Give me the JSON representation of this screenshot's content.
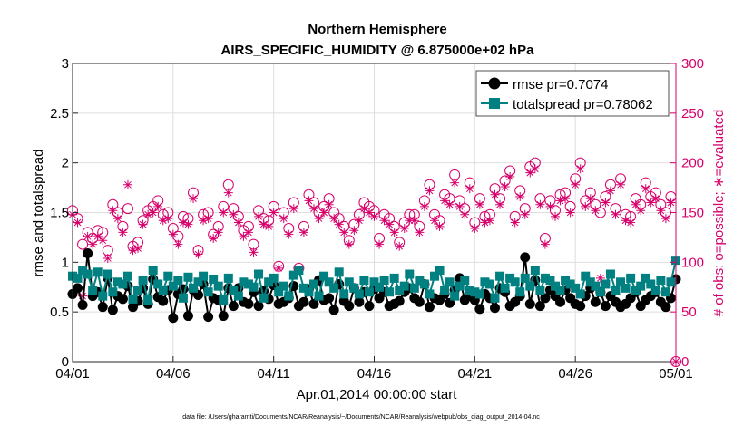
{
  "chart_data": {
    "type": "line",
    "title": "Northern Hemisphere",
    "subtitle": "AIRS_SPECIFIC_HUMIDITY @ 6.875000e+02 hPa",
    "xlabel": "Apr.01,2014 00:00:00 start",
    "ylabel": "rmse and totalspread",
    "y2label": "# of obs: o=possible; ∗=evaluated",
    "xlim": [
      0,
      30
    ],
    "ylim": [
      0,
      3
    ],
    "y2lim": [
      0,
      300
    ],
    "x_ticks": [
      0,
      5,
      10,
      15,
      20,
      25,
      30
    ],
    "x_tick_labels": [
      "04/01",
      "04/06",
      "04/11",
      "04/16",
      "04/21",
      "04/26",
      "05/01"
    ],
    "y_ticks": [
      0,
      0.5,
      1,
      1.5,
      2,
      2.5,
      3
    ],
    "y_tick_labels": [
      "0",
      "0.5",
      "1",
      "1.5",
      "2",
      "2.5",
      "3"
    ],
    "y2_ticks": [
      0,
      50,
      100,
      150,
      200,
      250,
      300
    ],
    "y2_tick_labels": [
      "0",
      "50",
      "100",
      "150",
      "200",
      "250",
      "300"
    ],
    "grid": true,
    "legend_position": "top-right",
    "colors": {
      "rmse": "#000000",
      "totalspread": "#008080",
      "obs": "#d6006b"
    },
    "series": [
      {
        "name": "rmse pr=0.7074",
        "axis": "left",
        "marker": "circle",
        "values": [
          0.68,
          0.74,
          0.57,
          1.09,
          0.66,
          0.7,
          0.55,
          0.84,
          0.52,
          0.66,
          0.63,
          0.76,
          0.55,
          0.61,
          0.74,
          0.58,
          0.83,
          0.65,
          0.61,
          0.72,
          0.44,
          0.68,
          0.73,
          0.46,
          0.72,
          0.67,
          0.78,
          0.45,
          0.64,
          0.62,
          0.46,
          0.74,
          0.56,
          0.74,
          0.6,
          0.58,
          0.7,
          0.56,
          0.71,
          0.63,
          0.77,
          0.58,
          0.6,
          0.64,
          0.76,
          0.56,
          0.6,
          0.73,
          0.58,
          0.82,
          0.62,
          0.64,
          0.52,
          0.78,
          0.61,
          0.56,
          0.74,
          0.6,
          0.7,
          0.56,
          0.73,
          0.64,
          0.7,
          0.56,
          0.58,
          0.61,
          0.7,
          0.74,
          0.64,
          0.6,
          0.78,
          0.55,
          0.64,
          0.62,
          0.68,
          0.59,
          0.72,
          0.84,
          0.62,
          0.66,
          0.62,
          0.53,
          0.68,
          0.64,
          0.54,
          0.74,
          0.7,
          0.56,
          0.6,
          0.66,
          1.05,
          0.58,
          0.82,
          0.56,
          0.64,
          0.72,
          0.66,
          0.6,
          0.72,
          0.64,
          0.58,
          0.56,
          0.66,
          0.74,
          0.6,
          0.7,
          0.56,
          0.66,
          0.6,
          0.55,
          0.58,
          0.64,
          0.7,
          0.56,
          0.62,
          0.66,
          0.7,
          0.6,
          0.55,
          0.64,
          0.83
        ]
      },
      {
        "name": "totalspread pr=0.78062",
        "axis": "left",
        "marker": "square",
        "values": [
          0.86,
          0.84,
          0.92,
          0.88,
          0.72,
          0.9,
          0.66,
          0.88,
          0.7,
          0.8,
          0.78,
          0.86,
          0.63,
          0.72,
          0.82,
          0.62,
          0.92,
          0.78,
          0.72,
          0.86,
          0.76,
          0.82,
          0.64,
          0.85,
          0.74,
          0.8,
          0.86,
          0.7,
          0.83,
          0.76,
          0.62,
          0.84,
          0.72,
          0.66,
          0.8,
          0.78,
          0.75,
          0.88,
          0.64,
          0.8,
          0.84,
          0.7,
          0.76,
          0.66,
          0.87,
          0.92,
          0.74,
          0.7,
          0.78,
          0.66,
          0.86,
          0.8,
          0.74,
          0.9,
          0.68,
          0.8,
          0.74,
          0.68,
          0.82,
          0.7,
          0.8,
          0.75,
          0.82,
          0.7,
          0.84,
          0.72,
          0.76,
          0.88,
          0.74,
          0.82,
          0.78,
          0.68,
          0.86,
          0.92,
          0.72,
          0.8,
          0.66,
          0.76,
          0.82,
          0.72,
          0.7,
          0.68,
          0.8,
          0.78,
          0.64,
          0.86,
          0.74,
          0.84,
          0.8,
          0.7,
          0.84,
          0.76,
          0.92,
          0.72,
          0.84,
          0.82,
          0.76,
          0.72,
          0.82,
          0.78,
          0.74,
          0.68,
          0.86,
          0.8,
          0.76,
          0.7,
          0.78,
          0.88,
          0.72,
          0.8,
          0.74,
          0.84,
          0.72,
          0.76,
          0.84,
          0.78,
          0.72,
          0.82,
          0.7,
          0.8,
          1.02
        ]
      },
      {
        "name": "possible",
        "axis": "right",
        "marker": "circle-open",
        "values": [
          152,
          144,
          118,
          130,
          124,
          132,
          130,
          112,
          158,
          150,
          136,
          154,
          116,
          120,
          142,
          152,
          156,
          162,
          148,
          150,
          134,
          126,
          146,
          144,
          170,
          112,
          148,
          150,
          128,
          136,
          156,
          178,
          154,
          146,
          132,
          136,
          118,
          152,
          144,
          142,
          156,
          96,
          150,
          134,
          160,
          94,
          136,
          168,
          160,
          150,
          156,
          164,
          150,
          144,
          136,
          122,
          138,
          148,
          160,
          156,
          152,
          124,
          148,
          144,
          136,
          120,
          140,
          148,
          148,
          136,
          162,
          178,
          148,
          142,
          168,
          164,
          188,
          162,
          154,
          180,
          140,
          164,
          146,
          148,
          174,
          164,
          182,
          192,
          146,
          172,
          154,
          196,
          200,
          164,
          124,
          162,
          152,
          168,
          170,
          156,
          184,
          200,
          162,
          170,
          158,
          150,
          166,
          178,
          154,
          184,
          148,
          146,
          164,
          158,
          180,
          166,
          170,
          158,
          150,
          166,
          0
        ]
      },
      {
        "name": "evaluated",
        "axis": "right",
        "marker": "asterisk",
        "values": [
          148,
          140,
          66,
          126,
          118,
          126,
          122,
          104,
          152,
          144,
          130,
          178,
          112,
          114,
          138,
          148,
          150,
          156,
          142,
          144,
          128,
          118,
          140,
          138,
          164,
          108,
          142,
          144,
          124,
          130,
          150,
          170,
          148,
          140,
          126,
          130,
          110,
          146,
          138,
          136,
          150,
          94,
          144,
          128,
          154,
          92,
          130,
          162,
          154,
          144,
          150,
          158,
          144,
          138,
          130,
          118,
          132,
          142,
          154,
          150,
          146,
          118,
          142,
          138,
          130,
          116,
          134,
          142,
          142,
          130,
          156,
          172,
          142,
          136,
          162,
          158,
          180,
          156,
          148,
          174,
          134,
          158,
          140,
          142,
          168,
          158,
          176,
          186,
          140,
          166,
          148,
          190,
          194,
          158,
          118,
          156,
          146,
          162,
          164,
          150,
          178,
          194,
          156,
          164,
          152,
          84,
          160,
          172,
          148,
          178,
          142,
          140,
          158,
          152,
          174,
          160,
          164,
          152,
          144,
          160,
          0
        ]
      }
    ],
    "footnote": "data file: /Users/gharamti/Documents/NCAR/Reanalysis/~/Documents/NCAR/Reanalysis/webpub/obs_diag_output_2014-04.nc"
  }
}
